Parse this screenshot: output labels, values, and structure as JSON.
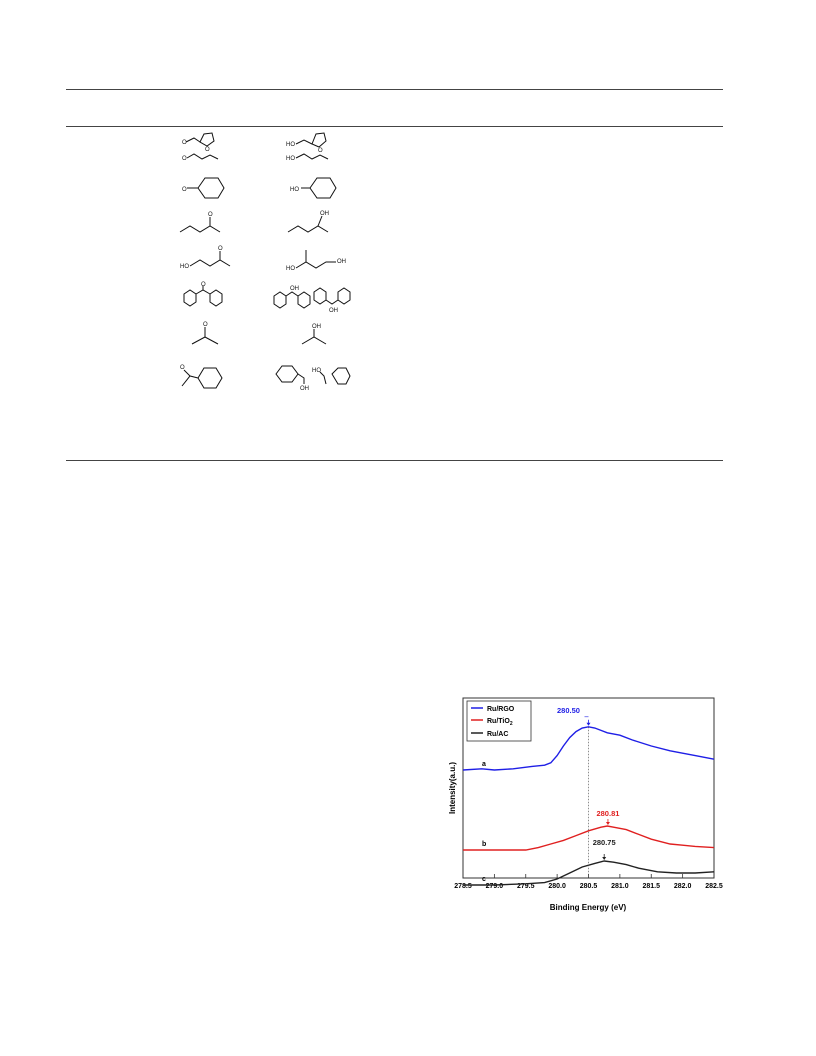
{
  "table": {
    "rows": [
      {
        "substrate": "furfural + propanal",
        "product": "furfuryl alcohol + propanol"
      },
      {
        "substrate": "cyclohexanone",
        "product": "cyclohexanol"
      },
      {
        "substrate": "2-pentanone",
        "product": "2-pentanol"
      },
      {
        "substrate": "hydroxyacetone",
        "product": "1,2-propanediol"
      },
      {
        "substrate": "benzophenone",
        "product": "diphenylmethanol + cyclohexylphenylmethanol"
      },
      {
        "substrate": "acetone",
        "product": "isopropanol"
      },
      {
        "substrate": "acetophenone",
        "product": "1-cyclohexylethanol + 1-phenylethanol"
      }
    ],
    "atom_labels": {
      "O": "O",
      "HO": "HO",
      "OH": "OH"
    }
  },
  "chart_data": {
    "type": "line",
    "xlabel": "Binding Energy (eV)",
    "ylabel": "Intensity(a.u.)",
    "xlim": [
      278.5,
      282.5
    ],
    "x_ticks": [
      "278.5",
      "279.0",
      "279.5",
      "280.0",
      "280.5",
      "281.0",
      "281.5",
      "282.0",
      "282.5"
    ],
    "grid": false,
    "legend_position": "top-left",
    "series": [
      {
        "name": "Ru/RGO",
        "name_main": "Ru/RGO",
        "name_sub": "",
        "curve_label": "a",
        "color": "#1f1fe6",
        "peak_label": "280.50",
        "peak_x": 280.5,
        "x": [
          278.5,
          278.8,
          279.0,
          279.3,
          279.6,
          279.8,
          279.9,
          280.0,
          280.1,
          280.2,
          280.3,
          280.4,
          280.5,
          280.6,
          280.7,
          280.8,
          281.0,
          281.2,
          281.5,
          281.8,
          282.0,
          282.2,
          282.5
        ],
        "values": [
          0.3,
          0.31,
          0.3,
          0.31,
          0.33,
          0.34,
          0.36,
          0.42,
          0.5,
          0.57,
          0.62,
          0.65,
          0.66,
          0.65,
          0.63,
          0.61,
          0.59,
          0.55,
          0.5,
          0.46,
          0.44,
          0.42,
          0.39
        ]
      },
      {
        "name": "Ru/TiO2",
        "name_main": "Ru/TiO",
        "name_sub": "2",
        "curve_label": "b",
        "color": "#e02020",
        "peak_label": "280.81",
        "peak_x": 280.81,
        "x": [
          278.5,
          279.0,
          279.5,
          279.7,
          279.9,
          280.1,
          280.3,
          280.5,
          280.7,
          280.8,
          280.9,
          281.1,
          281.3,
          281.5,
          281.8,
          282.0,
          282.2,
          282.5
        ],
        "values": [
          0.0,
          0.0,
          0.0,
          0.02,
          0.05,
          0.08,
          0.12,
          0.16,
          0.19,
          0.2,
          0.19,
          0.17,
          0.13,
          0.09,
          0.05,
          0.04,
          0.03,
          0.02
        ]
      },
      {
        "name": "Ru/AC",
        "name_main": "Ru/AC",
        "name_sub": "",
        "curve_label": "c",
        "color": "#222222",
        "peak_label": "280.75",
        "peak_x": 280.75,
        "x": [
          278.5,
          279.0,
          279.5,
          279.8,
          280.0,
          280.2,
          280.4,
          280.6,
          280.75,
          280.9,
          281.1,
          281.3,
          281.6,
          281.9,
          282.2,
          282.5
        ],
        "values": [
          0.0,
          0.0,
          0.01,
          0.02,
          0.05,
          0.1,
          0.15,
          0.18,
          0.2,
          0.19,
          0.17,
          0.14,
          0.11,
          0.1,
          0.1,
          0.11
        ]
      }
    ]
  }
}
